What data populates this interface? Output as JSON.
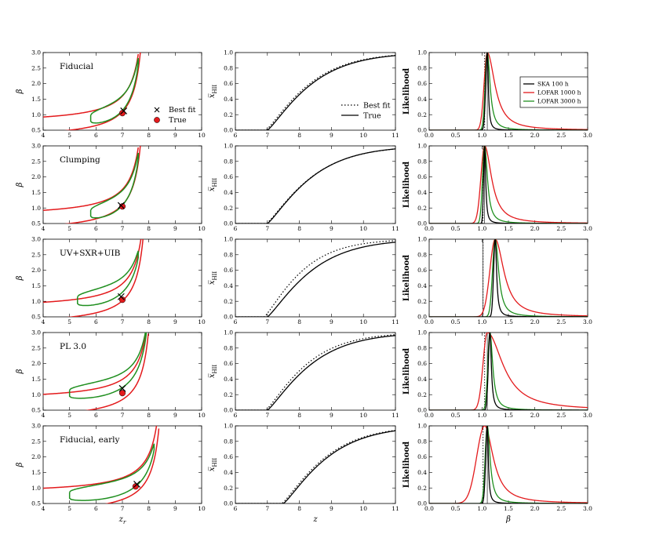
{
  "chart_data": {
    "type": "line",
    "layout": "5 rows x 3 columns",
    "colors": {
      "outer_contour": "#e31a1c",
      "inner_contour": "#1f8f1f",
      "true_marker": "#e31a1c",
      "ska": "#000000",
      "lofar1000": "#e31a1c",
      "lofar3000": "#1f8f1f"
    },
    "columns": [
      {
        "name": "contours",
        "xlabel": "z_r",
        "ylabel": "β",
        "xlim": [
          4,
          10
        ],
        "ylim": [
          0.5,
          3.0
        ],
        "xticks": [
          "4",
          "5",
          "6",
          "7",
          "8",
          "9",
          "10"
        ],
        "yticks": [
          "0.5",
          "1.0",
          "1.5",
          "2.0",
          "2.5",
          "3.0"
        ],
        "legend": [
          {
            "label": "Best fit",
            "marker": "x"
          },
          {
            "label": "True",
            "marker": "red-circle"
          }
        ]
      },
      {
        "name": "ionization_history",
        "xlabel": "z",
        "ylabel": "x̅_HII",
        "xlim": [
          6,
          11
        ],
        "ylim": [
          0.0,
          1.0
        ],
        "xticks": [
          "6",
          "7",
          "8",
          "9",
          "10",
          "11"
        ],
        "yticks": [
          "0.0",
          "0.2",
          "0.4",
          "0.6",
          "0.8",
          "1.0"
        ],
        "legend": [
          {
            "label": "Best fit",
            "style": "dotted"
          },
          {
            "label": "True",
            "style": "solid"
          }
        ]
      },
      {
        "name": "likelihood",
        "xlabel": "β",
        "ylabel": "Likelihood",
        "xlim": [
          0.0,
          3.0
        ],
        "ylim": [
          0.0,
          1.0
        ],
        "xticks": [
          "0.0",
          "0.5",
          "1.0",
          "1.5",
          "2.0",
          "2.5",
          "3.0"
        ],
        "yticks": [
          "0.0",
          "0.2",
          "0.4",
          "0.6",
          "0.8",
          "1.0"
        ],
        "legend": [
          {
            "label": "SKA 100 h",
            "color": "#000000"
          },
          {
            "label": "LOFAR 1000 h",
            "color": "#e31a1c"
          },
          {
            "label": "LOFAR 3000 h",
            "color": "#1f8f1f"
          }
        ]
      }
    ],
    "rows": [
      {
        "model": "Fiducial",
        "contour": {
          "zc": 8.0,
          "red_offsets": [
            0.35,
            -0.15
          ],
          "green_range": [
            5.8,
            7.6
          ],
          "green_offsets": [
            0.0,
            -0.15
          ],
          "green_bias": 0.2
        },
        "truth": {
          "zr": 7.0,
          "beta": 1.05
        },
        "best_fit": {
          "zr": 7.05,
          "beta": 1.12
        },
        "xhii": {
          "true_z0": 7.0,
          "best_z0": 6.95,
          "true_scale": 1.5,
          "best_scale": 1.48
        },
        "likelihood": {
          "ska": [
            1.1,
            0.03,
            0.03
          ],
          "lofar1000": [
            1.1,
            0.06,
            0.22
          ],
          "lofar3000": [
            1.1,
            0.04,
            0.08
          ],
          "dotted_line": 1.05,
          "true_line": 1.1
        }
      },
      {
        "model": "Clumping",
        "contour": {
          "zc": 8.0,
          "red_offsets": [
            0.35,
            -0.15
          ],
          "green_range": [
            5.8,
            7.6
          ],
          "green_offsets": [
            0.0,
            -0.15
          ],
          "green_bias": 0.15
        },
        "truth": {
          "zr": 7.0,
          "beta": 1.05
        },
        "best_fit": {
          "zr": 6.95,
          "beta": 1.08
        },
        "xhii": {
          "true_z0": 7.0,
          "best_z0": 6.97,
          "true_scale": 1.5,
          "best_scale": 1.52
        },
        "likelihood": {
          "ska": [
            1.05,
            0.02,
            0.03
          ],
          "lofar1000": [
            1.05,
            0.07,
            0.2
          ],
          "lofar3000": [
            1.05,
            0.04,
            0.08
          ],
          "dotted_line": 1.02,
          "true_line": 1.05
        }
      },
      {
        "model": "UV+SXR+UIB",
        "contour": {
          "zc": 8.1,
          "red_offsets": [
            0.4,
            -0.15
          ],
          "green_range": [
            5.3,
            7.6
          ],
          "green_offsets": [
            0.05,
            -0.12
          ],
          "green_bias": 0.4
        },
        "truth": {
          "zr": 7.0,
          "beta": 1.05
        },
        "best_fit": {
          "zr": 6.95,
          "beta": 1.15
        },
        "xhii": {
          "true_z0": 7.0,
          "best_z0": 6.9,
          "true_scale": 1.5,
          "best_scale": 1.3
        },
        "likelihood": {
          "ska": [
            1.25,
            0.03,
            0.04
          ],
          "lofar1000": [
            1.25,
            0.1,
            0.25
          ],
          "lofar3000": [
            1.25,
            0.05,
            0.1
          ],
          "dotted_line": 1.02,
          "true_line": 1.02
        }
      },
      {
        "model": "PL 3.0",
        "contour": {
          "zc": 8.3,
          "red_offsets": [
            0.45,
            -0.2
          ],
          "green_range": [
            5.0,
            7.9
          ],
          "green_offsets": [
            0.05,
            -0.1
          ],
          "green_bias": 0.45
        },
        "truth": {
          "zr": 7.0,
          "beta": 1.05
        },
        "best_fit": {
          "zr": 7.0,
          "beta": 1.2
        },
        "xhii": {
          "true_z0": 7.0,
          "best_z0": 6.95,
          "true_scale": 1.5,
          "best_scale": 1.4
        },
        "likelihood": {
          "ska": [
            1.15,
            0.03,
            0.04
          ],
          "lofar1000": [
            1.1,
            0.08,
            0.45
          ],
          "lofar3000": [
            1.15,
            0.04,
            0.08
          ],
          "dotted_line": 1.05,
          "true_line": 1.1
        }
      },
      {
        "model": "Fiducial, early",
        "contour": {
          "zc": 8.7,
          "red_offsets": [
            0.45,
            -0.25
          ],
          "green_range": [
            5.0,
            8.2
          ],
          "green_offsets": [
            0.05,
            -0.1
          ],
          "green_bias": 0.2
        },
        "truth": {
          "zr": 7.5,
          "beta": 1.05
        },
        "best_fit": {
          "zr": 7.55,
          "beta": 1.12
        },
        "xhii": {
          "true_z0": 7.5,
          "best_z0": 7.45,
          "true_scale": 1.5,
          "best_scale": 1.48
        },
        "likelihood": {
          "ska": [
            1.1,
            0.03,
            0.03
          ],
          "lofar1000": [
            1.05,
            0.15,
            0.25
          ],
          "lofar3000": [
            1.1,
            0.04,
            0.08
          ],
          "dotted_line": 1.02,
          "true_line": 1.1
        }
      }
    ]
  }
}
